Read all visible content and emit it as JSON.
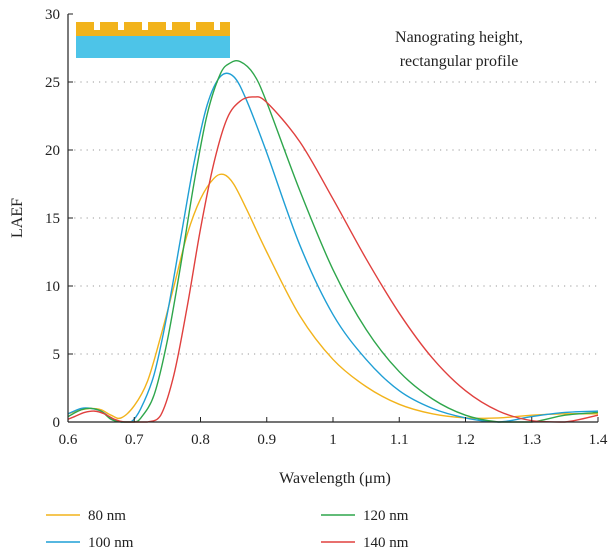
{
  "chart_data": {
    "type": "line",
    "xlabel": "Wavelength (μm)",
    "ylabel": "LAEF",
    "xlim": [
      0.6,
      1.4
    ],
    "ylim": [
      0,
      30
    ],
    "xticks": [
      "0.6",
      "0.7",
      "0.8",
      "0.9",
      "1",
      "1.1",
      "1.2",
      "1.3",
      "1.4"
    ],
    "yticks": [
      "0",
      "5",
      "10",
      "15",
      "20",
      "25",
      "30"
    ],
    "grid": "horizontal dotted",
    "annotation": [
      "Nanograting height,",
      "rectangular profile"
    ],
    "legend_position": "bottom",
    "series": [
      {
        "name": "80 nm",
        "color": "#f2b31b",
        "x": [
          0.6,
          0.62,
          0.635,
          0.65,
          0.665,
          0.68,
          0.7,
          0.72,
          0.74,
          0.76,
          0.78,
          0.8,
          0.82,
          0.835,
          0.85,
          0.87,
          0.9,
          0.95,
          1.0,
          1.05,
          1.1,
          1.15,
          1.2,
          1.25,
          1.3,
          1.35,
          1.4
        ],
        "y": [
          0.6,
          0.9,
          1.0,
          0.9,
          0.5,
          0.3,
          1.2,
          3.0,
          6.3,
          10.0,
          13.8,
          16.4,
          17.9,
          18.2,
          17.5,
          15.6,
          12.5,
          7.8,
          4.6,
          2.6,
          1.3,
          0.6,
          0.3,
          0.3,
          0.5,
          0.6,
          0.6
        ]
      },
      {
        "name": "100 nm",
        "color": "#1f9fd5",
        "x": [
          0.6,
          0.62,
          0.635,
          0.65,
          0.665,
          0.68,
          0.695,
          0.71,
          0.73,
          0.75,
          0.77,
          0.79,
          0.81,
          0.83,
          0.85,
          0.87,
          0.9,
          0.95,
          1.0,
          1.05,
          1.1,
          1.15,
          1.2,
          1.25,
          1.3,
          1.35,
          1.4
        ],
        "y": [
          0.6,
          1.0,
          1.0,
          0.8,
          0.3,
          0.0,
          0.0,
          1.0,
          3.5,
          8.0,
          13.5,
          19.0,
          23.3,
          25.4,
          25.4,
          23.6,
          19.8,
          13.0,
          7.9,
          4.6,
          2.3,
          1.0,
          0.3,
          0.0,
          0.4,
          0.7,
          0.8
        ]
      },
      {
        "name": "120 nm",
        "color": "#2ea64b",
        "x": [
          0.6,
          0.62,
          0.635,
          0.65,
          0.665,
          0.68,
          0.7,
          0.71,
          0.73,
          0.75,
          0.77,
          0.79,
          0.81,
          0.83,
          0.845,
          0.86,
          0.88,
          0.9,
          0.95,
          1.0,
          1.05,
          1.1,
          1.15,
          1.2,
          1.25,
          1.3,
          1.35,
          1.4
        ],
        "y": [
          0.4,
          0.9,
          1.0,
          0.8,
          0.2,
          0.0,
          0.0,
          0.3,
          2.0,
          6.0,
          11.5,
          17.5,
          22.6,
          25.6,
          26.4,
          26.5,
          25.6,
          23.5,
          17.0,
          11.2,
          6.8,
          3.7,
          1.7,
          0.5,
          0.0,
          0.0,
          0.5,
          0.7
        ]
      },
      {
        "name": "140 nm",
        "color": "#e0403e",
        "x": [
          0.6,
          0.61,
          0.625,
          0.64,
          0.655,
          0.67,
          0.685,
          0.7,
          0.72,
          0.74,
          0.76,
          0.78,
          0.8,
          0.82,
          0.84,
          0.86,
          0.88,
          0.9,
          0.95,
          1.0,
          1.05,
          1.1,
          1.15,
          1.2,
          1.25,
          1.3,
          1.35,
          1.4
        ],
        "y": [
          0.2,
          0.4,
          0.7,
          0.8,
          0.6,
          0.2,
          0.0,
          0.0,
          0.0,
          0.5,
          3.5,
          8.5,
          14.2,
          19.0,
          22.3,
          23.6,
          23.9,
          23.5,
          20.6,
          16.4,
          12.0,
          8.0,
          4.7,
          2.3,
          0.8,
          0.1,
          0.0,
          0.5
        ]
      }
    ]
  }
}
